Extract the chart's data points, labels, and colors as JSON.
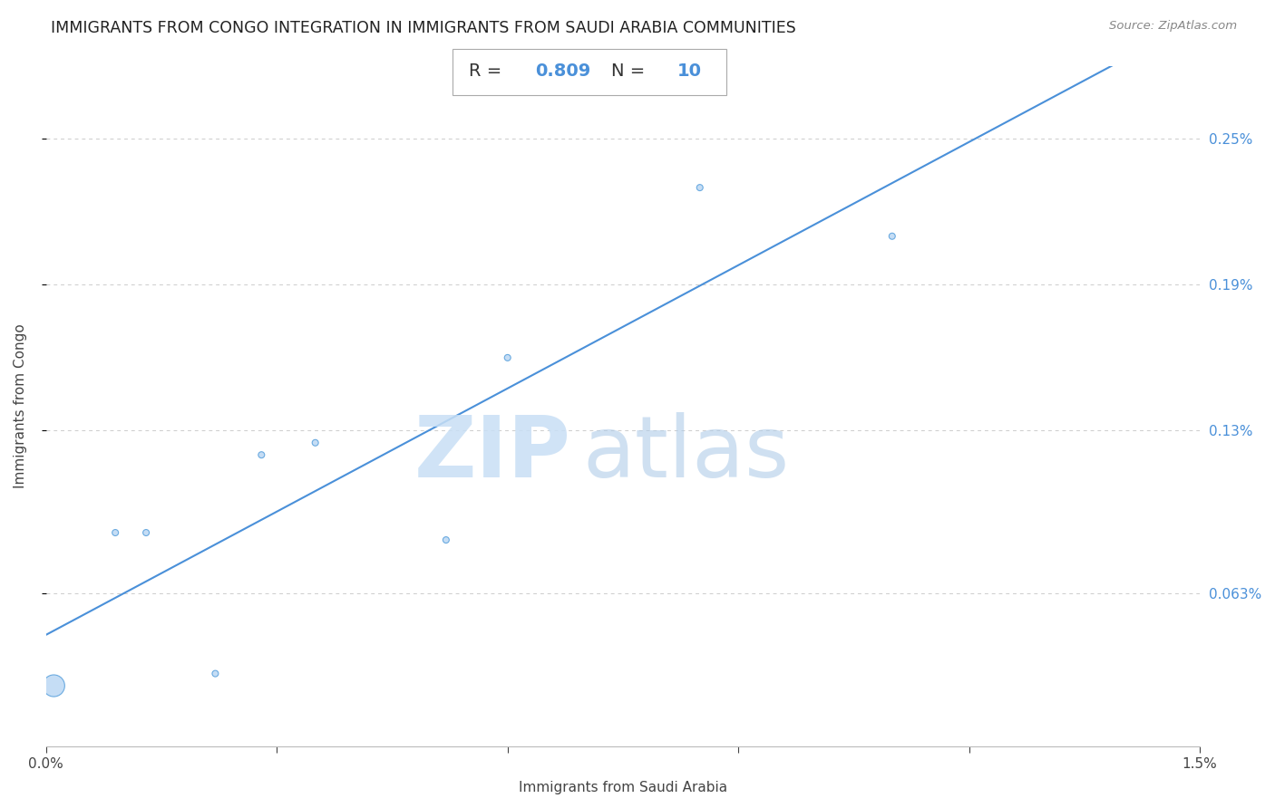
{
  "title": "IMMIGRANTS FROM CONGO INTEGRATION IN IMMIGRANTS FROM SAUDI ARABIA COMMUNITIES",
  "source": "Source: ZipAtlas.com",
  "xlabel": "Immigrants from Saudi Arabia",
  "ylabel": "Immigrants from Congo",
  "xlim": [
    0.0,
    0.015
  ],
  "ylim": [
    0.0,
    0.0028
  ],
  "xtick_positions": [
    0.0,
    0.003,
    0.006,
    0.009,
    0.012,
    0.015
  ],
  "xtick_labels": [
    "0.0%",
    "",
    "",
    "",
    "",
    "1.5%"
  ],
  "ytick_labels": [
    "0.063%",
    "0.13%",
    "0.19%",
    "0.25%"
  ],
  "ytick_vals": [
    0.00063,
    0.0013,
    0.0019,
    0.0025
  ],
  "R": "0.809",
  "N": "10",
  "line_color": "#4a90d9",
  "scatter_face_color": "#c5ddf5",
  "scatter_edge_color": "#6aaae0",
  "x_data": [
    0.0001,
    0.0009,
    0.0013,
    0.0022,
    0.0028,
    0.0035,
    0.0052,
    0.006,
    0.0085,
    0.011
  ],
  "y_data": [
    0.00025,
    0.00088,
    0.00088,
    0.0003,
    0.0012,
    0.00125,
    0.00085,
    0.0016,
    0.0023,
    0.0021
  ],
  "size_data": [
    300,
    25,
    25,
    25,
    25,
    25,
    25,
    25,
    25,
    25
  ],
  "grid_color": "#cccccc",
  "title_fontsize": 12.5,
  "axis_label_fontsize": 11,
  "tick_fontsize": 11,
  "ann_fontsize": 14,
  "watermark_zip_color": "#c8dff5",
  "watermark_atlas_color": "#b0cce8"
}
